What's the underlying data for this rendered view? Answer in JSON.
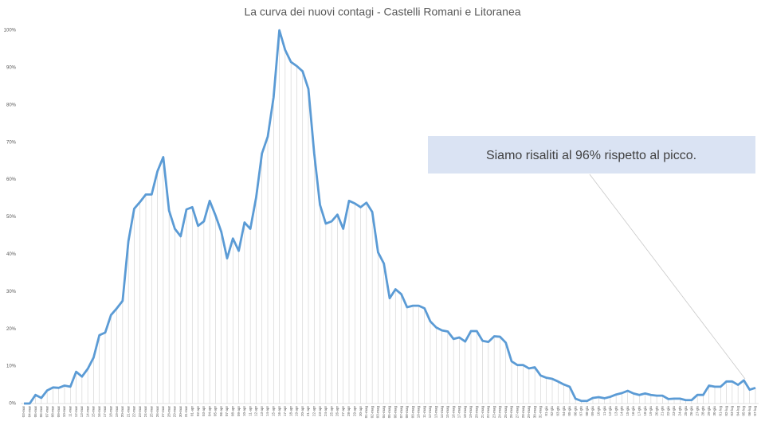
{
  "chart_data": {
    "type": "line",
    "title": "La curva dei nuovi contagi - Castelli Romani e Litoranea",
    "annotation": "Siamo risaliti al 96% rispetto al picco.",
    "categories": [
      "03-mar",
      "04-mar",
      "05-mar",
      "06-mar",
      "07-mar",
      "08-mar",
      "09-mar",
      "10-mar",
      "11-mar",
      "12-mar",
      "13-mar",
      "14-mar",
      "15-mar",
      "16-mar",
      "17-mar",
      "18-mar",
      "19-mar",
      "20-mar",
      "21-mar",
      "22-mar",
      "23-mar",
      "24-mar",
      "25-mar",
      "26-mar",
      "27-mar",
      "28-mar",
      "29-mar",
      "30-mar",
      "31-mar",
      "01-apr",
      "02-apr",
      "03-apr",
      "04-apr",
      "05-apr",
      "06-apr",
      "07-apr",
      "08-apr",
      "09-apr",
      "10-apr",
      "11-apr",
      "12-apr",
      "13-apr",
      "14-apr",
      "15-apr",
      "16-apr",
      "17-apr",
      "18-apr",
      "19-apr",
      "20-apr",
      "21-apr",
      "22-apr",
      "23-apr",
      "24-apr",
      "25-apr",
      "26-apr",
      "27-apr",
      "28-apr",
      "29-apr",
      "30-apr",
      "01-mag",
      "02-mag",
      "03-mag",
      "04-mag",
      "05-mag",
      "06-mag",
      "07-mag",
      "08-mag",
      "09-mag",
      "10-mag",
      "11-mag",
      "12-mag",
      "13-mag",
      "14-mag",
      "15-mag",
      "16-mag",
      "17-mag",
      "18-mag",
      "19-mag",
      "20-mag",
      "21-mag",
      "22-mag",
      "23-mag",
      "24-mag",
      "25-mag",
      "26-mag",
      "27-mag",
      "28-mag",
      "29-mag",
      "30-mag",
      "31-mag",
      "01-giu",
      "02-giu",
      "03-giu",
      "04-giu",
      "05-giu",
      "06-giu",
      "07-giu",
      "08-giu",
      "09-giu",
      "10-giu",
      "11-giu",
      "12-giu",
      "13-giu",
      "14-giu",
      "15-giu",
      "16-giu",
      "17-giu",
      "18-giu",
      "19-giu",
      "20-giu",
      "21-giu",
      "22-giu",
      "23-giu",
      "24-giu",
      "25-giu",
      "26-giu",
      "27-giu",
      "28-giu",
      "29-giu",
      "30-giu",
      "01-lug",
      "02-lug",
      "03-lug",
      "04-lug",
      "05-lug",
      "06-lug",
      "07-lug"
    ],
    "values": [
      0,
      0,
      2.3,
      1.5,
      3.5,
      4.3,
      4.2,
      4.8,
      4.5,
      8.5,
      7.2,
      9.3,
      12.3,
      18.3,
      19,
      23.7,
      25.5,
      27.5,
      43.5,
      52.2,
      54,
      56,
      56,
      62.2,
      66,
      51.7,
      46.8,
      44.8,
      52,
      52.6,
      47.6,
      48.8,
      54.3,
      50.4,
      46,
      38.9,
      44.2,
      40.9,
      48.5,
      46.8,
      55.2,
      67,
      71.5,
      82,
      100,
      94.7,
      91.5,
      90.4,
      89,
      84.3,
      67,
      53.2,
      48.2,
      48.8,
      50.6,
      46.8,
      54.3,
      53.6,
      52.6,
      53.8,
      51.3,
      40.5,
      37.5,
      28.2,
      30.6,
      29.3,
      25.8,
      26.2,
      26.2,
      25.5,
      22,
      20.4,
      19.6,
      19.3,
      17.3,
      17.7,
      16.6,
      19.4,
      19.4,
      16.8,
      16.5,
      18,
      17.9,
      16.3,
      11.3,
      10.3,
      10.3,
      9.4,
      9.7,
      7.5,
      6.9,
      6.6,
      5.9,
      5.1,
      4.5,
      1.3,
      0.7,
      0.7,
      1.5,
      1.7,
      1.4,
      1.8,
      2.4,
      2.8,
      3.4,
      2.7,
      2.3,
      2.7,
      2.3,
      2.1,
      2.1,
      1.2,
      1.3,
      1.3,
      0.9,
      0.9,
      2.3,
      2.3,
      4.8,
      4.5,
      4.5,
      5.9,
      5.9,
      5,
      6.2,
      3.7,
      4.2
    ],
    "color": "#5b9bd5",
    "ylim": [
      0,
      100
    ],
    "yticks": [
      {
        "value": 0,
        "label": "0%"
      },
      {
        "value": 10,
        "label": "10%"
      },
      {
        "value": 20,
        "label": "20%"
      },
      {
        "value": 30,
        "label": "30%"
      },
      {
        "value": 40,
        "label": "40%"
      },
      {
        "value": 50,
        "label": "50%"
      },
      {
        "value": 60,
        "label": "60%"
      },
      {
        "value": 70,
        "label": "70%"
      },
      {
        "value": 80,
        "label": "80%"
      },
      {
        "value": 90,
        "label": "90%"
      },
      {
        "value": 100,
        "label": "100%"
      }
    ],
    "drop_lines": true
  }
}
